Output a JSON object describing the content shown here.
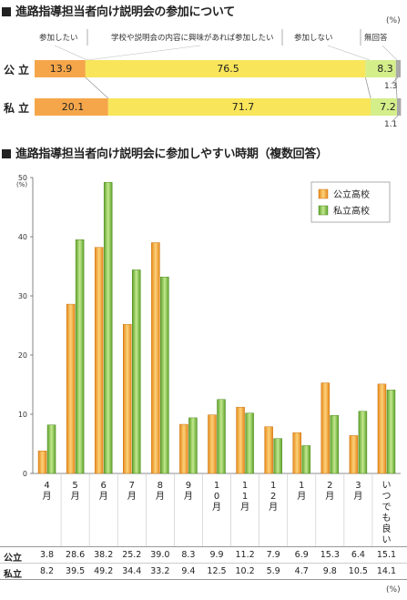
{
  "section1": {
    "title": "進路指導担当者向け説明会の参加について",
    "unit": "(%)",
    "headers": [
      "参加したい",
      "学校や説明会の内容に興味があれば参加したい",
      "参加しない",
      "無回答"
    ],
    "rows": [
      {
        "label": "公立",
        "values": [
          "13.9",
          "76.5",
          "8.3"
        ],
        "outside": "1.3"
      },
      {
        "label": "私立",
        "values": [
          "20.1",
          "71.7",
          "7.2"
        ],
        "outside": "1.1"
      }
    ]
  },
  "section2": {
    "title": "進路指導担当者向け説明会に参加しやすい時期（複数回答）",
    "yunit": "(%)",
    "legend": [
      "公立高校",
      "私立高校"
    ],
    "table_unit": "(%)",
    "table_labels": [
      "公立",
      "私立"
    ],
    "categories": [
      "4月",
      "5月",
      "6月",
      "7月",
      "8月",
      "9月",
      "10月",
      "11月",
      "12月",
      "1月",
      "2月",
      "3月",
      "いつでも良い"
    ],
    "public_text": [
      "3.8",
      "28.6",
      "38.2",
      "25.2",
      "39.0",
      "8.3",
      "9.9",
      "11.2",
      "7.9",
      "6.9",
      "15.3",
      "6.4",
      "15.1"
    ],
    "private_text": [
      "8.2",
      "39.5",
      "49.2",
      "34.4",
      "33.2",
      "9.4",
      "12.5",
      "10.2",
      "5.9",
      "4.7",
      "9.8",
      "10.5",
      "14.1"
    ]
  },
  "chart_data": [
    {
      "type": "bar",
      "orientation": "horizontal-stacked",
      "title": "進路指導担当者向け説明会の参加について",
      "unit": "%",
      "categories": [
        "公立",
        "私立"
      ],
      "series": [
        {
          "name": "参加したい",
          "values": [
            13.9,
            20.1
          ]
        },
        {
          "name": "学校や説明会の内容に興味があれば参加したい",
          "values": [
            76.5,
            71.7
          ]
        },
        {
          "name": "参加しない",
          "values": [
            8.3,
            7.2
          ]
        },
        {
          "name": "無回答",
          "values": [
            1.3,
            1.1
          ]
        }
      ],
      "colors": [
        "#f6a64a",
        "#f8e55a",
        "#d4ee8a",
        "#a9a9a9"
      ]
    },
    {
      "type": "bar",
      "title": "進路指導担当者向け説明会に参加しやすい時期（複数回答）",
      "ylabel": "(%)",
      "ylim": [
        0,
        50
      ],
      "yticks": [
        0,
        10,
        20,
        30,
        40,
        50
      ],
      "categories": [
        "4月",
        "5月",
        "6月",
        "7月",
        "8月",
        "9月",
        "10月",
        "11月",
        "12月",
        "1月",
        "2月",
        "3月",
        "いつでも良い"
      ],
      "series": [
        {
          "name": "公立高校",
          "values": [
            3.8,
            28.6,
            38.2,
            25.2,
            39.0,
            8.3,
            9.9,
            11.2,
            7.9,
            6.9,
            15.3,
            6.4,
            15.1
          ],
          "color": "#f5a030"
        },
        {
          "name": "私立高校",
          "values": [
            8.2,
            39.5,
            49.2,
            34.4,
            33.2,
            9.4,
            12.5,
            10.2,
            5.9,
            4.7,
            9.8,
            10.5,
            14.1
          ],
          "color": "#7cc13a"
        }
      ],
      "legend": "top-right",
      "grid": false
    }
  ]
}
